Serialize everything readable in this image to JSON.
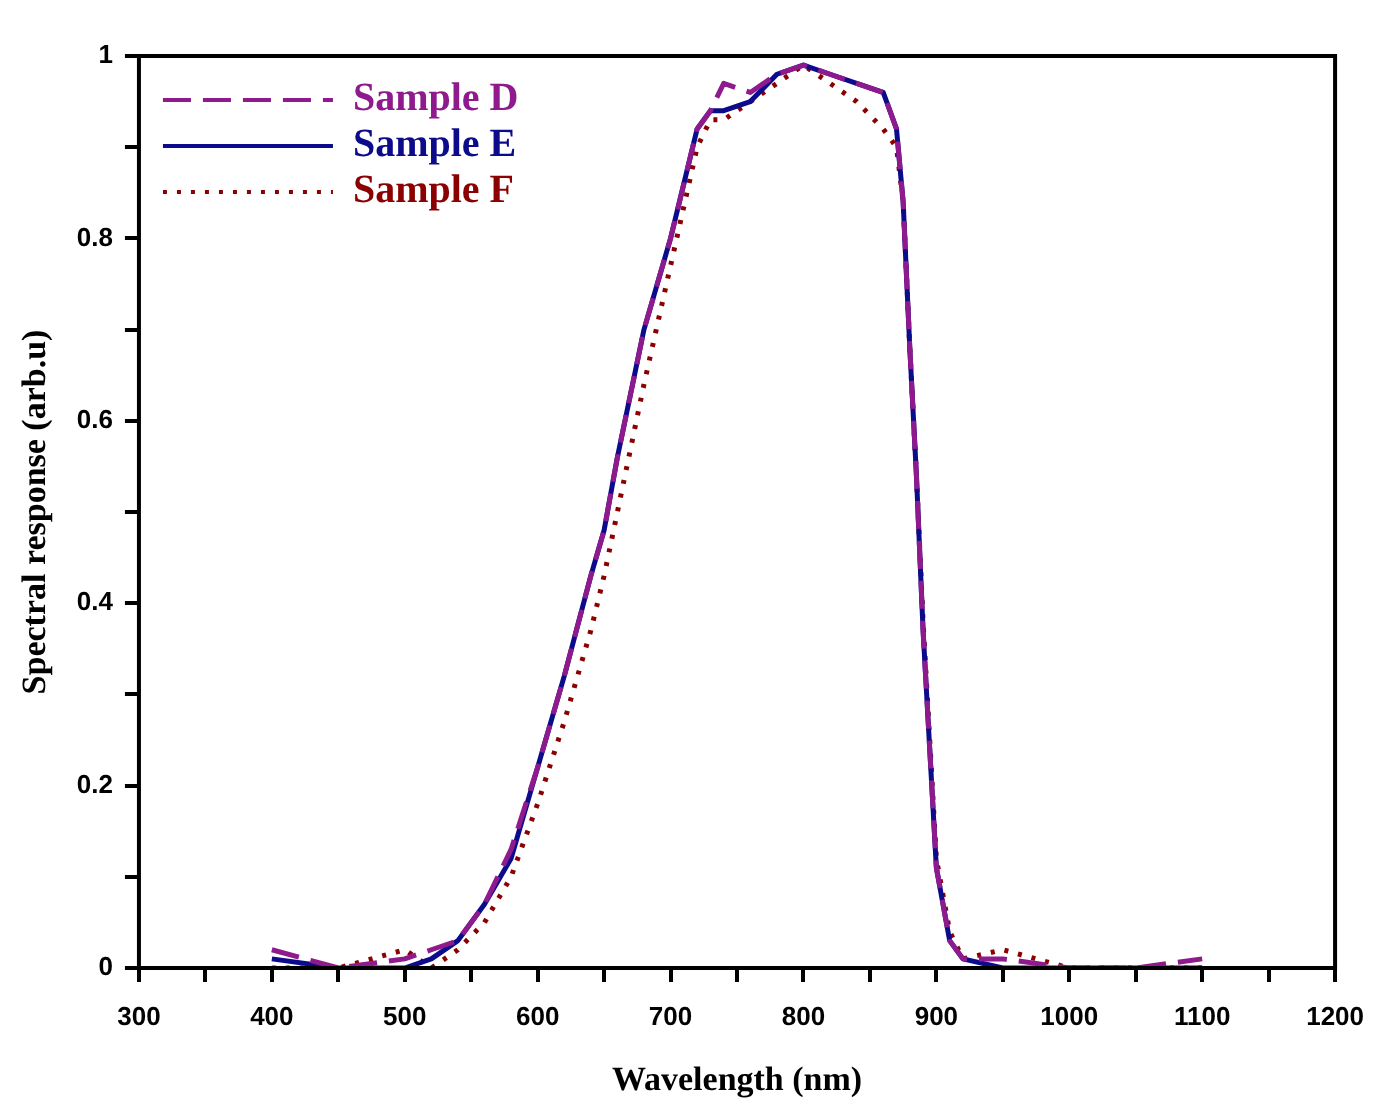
{
  "chart_data": {
    "type": "line",
    "xlabel": "Wavelength (nm)",
    "ylabel": "Spectral response (arb.u)",
    "xlim": [
      300,
      1200
    ],
    "ylim": [
      0,
      1
    ],
    "xticks": [
      300,
      {
        "value": 350,
        "label": null
      },
      400,
      {
        "value": 450,
        "label": null
      },
      500,
      {
        "value": 550,
        "label": null
      },
      600,
      {
        "value": 650,
        "label": null
      },
      700,
      {
        "value": 750,
        "label": null
      },
      800,
      {
        "value": 850,
        "label": null
      },
      900,
      {
        "value": 950,
        "label": null
      },
      1000,
      {
        "value": 1050,
        "label": null
      },
      1100,
      {
        "value": 1150,
        "label": null
      },
      1200
    ],
    "yticks": [
      0,
      {
        "value": 0.1,
        "label": null
      },
      0.2,
      {
        "value": 0.3,
        "label": null
      },
      0.4,
      {
        "value": 0.5,
        "label": null
      },
      0.6,
      {
        "value": 0.7,
        "label": null
      },
      0.8,
      {
        "value": 0.9,
        "label": null
      },
      1
    ],
    "legend": "top left",
    "grid": false,
    "x": [
      400,
      450,
      500,
      520,
      540,
      560,
      580,
      600,
      620,
      640,
      650,
      660,
      680,
      700,
      720,
      730,
      740,
      760,
      780,
      800,
      820,
      840,
      860,
      870,
      875,
      880,
      885,
      890,
      900,
      910,
      920,
      950,
      1000,
      1050,
      1100
    ],
    "series": [
      {
        "name": "Sample D",
        "color": "#8e1a8e",
        "line_style": "dashed",
        "values": [
          0.02,
          0.0,
          0.01,
          0.02,
          0.03,
          0.07,
          0.13,
          0.22,
          0.32,
          0.43,
          0.48,
          0.56,
          0.7,
          0.8,
          0.92,
          0.94,
          0.97,
          0.96,
          0.98,
          0.99,
          0.98,
          0.97,
          0.96,
          0.92,
          0.84,
          0.68,
          0.54,
          0.37,
          0.11,
          0.03,
          0.01,
          0.01,
          0.0,
          0.0,
          0.01
        ]
      },
      {
        "name": "Sample E",
        "color": "#0b0b8b",
        "line_style": "solid",
        "values": [
          0.01,
          0.0,
          0.0,
          0.01,
          0.03,
          0.07,
          0.12,
          0.22,
          0.32,
          0.43,
          0.48,
          0.56,
          0.7,
          0.8,
          0.92,
          0.94,
          0.94,
          0.95,
          0.98,
          0.99,
          0.98,
          0.97,
          0.96,
          0.92,
          0.84,
          0.68,
          0.54,
          0.37,
          0.11,
          0.03,
          0.01,
          0.0,
          0.0,
          0.0,
          0.0
        ]
      },
      {
        "name": "Sample F",
        "color": "#8b0000",
        "line_style": "dotted",
        "values": [
          0.0,
          0.0,
          0.02,
          0.0,
          0.02,
          0.05,
          0.1,
          0.18,
          0.27,
          0.37,
          0.43,
          0.5,
          0.64,
          0.77,
          0.9,
          0.93,
          0.93,
          0.95,
          0.97,
          0.99,
          0.97,
          0.95,
          0.92,
          0.9,
          0.84,
          0.68,
          0.54,
          0.38,
          0.12,
          0.04,
          0.01,
          0.02,
          0.0,
          0.0,
          0.0
        ]
      }
    ]
  }
}
